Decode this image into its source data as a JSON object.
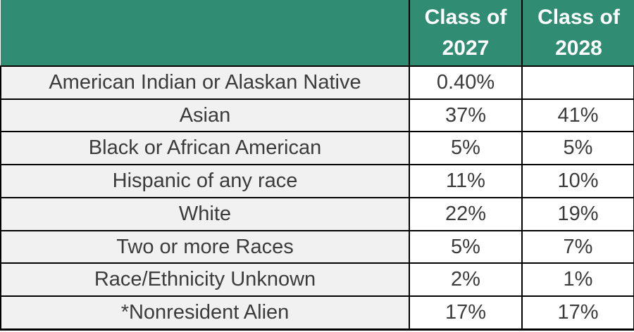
{
  "colors": {
    "header_bg": "#318C74",
    "header_text": "#FFFFFF",
    "label_cell_bg": "#F1F1F1",
    "value_cell_bg": "#FFFFFF",
    "border": "#000000",
    "body_text": "#3B3B3B"
  },
  "chart_data": {
    "type": "table",
    "title": "",
    "columns": [
      "",
      "Class of 2027",
      "Class of 2028"
    ],
    "rows": [
      [
        "American Indian or Alaskan Native",
        "0.40%",
        ""
      ],
      [
        "Asian",
        "37%",
        "41%"
      ],
      [
        "Black or African American",
        "5%",
        "5%"
      ],
      [
        "Hispanic of any race",
        "11%",
        "10%"
      ],
      [
        "White",
        "22%",
        "19%"
      ],
      [
        "Two or more Races",
        "5%",
        "7%"
      ],
      [
        "Race/Ethnicity Unknown",
        "2%",
        "1%"
      ],
      [
        "*Nonresident Alien",
        "17%",
        "17%"
      ]
    ]
  }
}
